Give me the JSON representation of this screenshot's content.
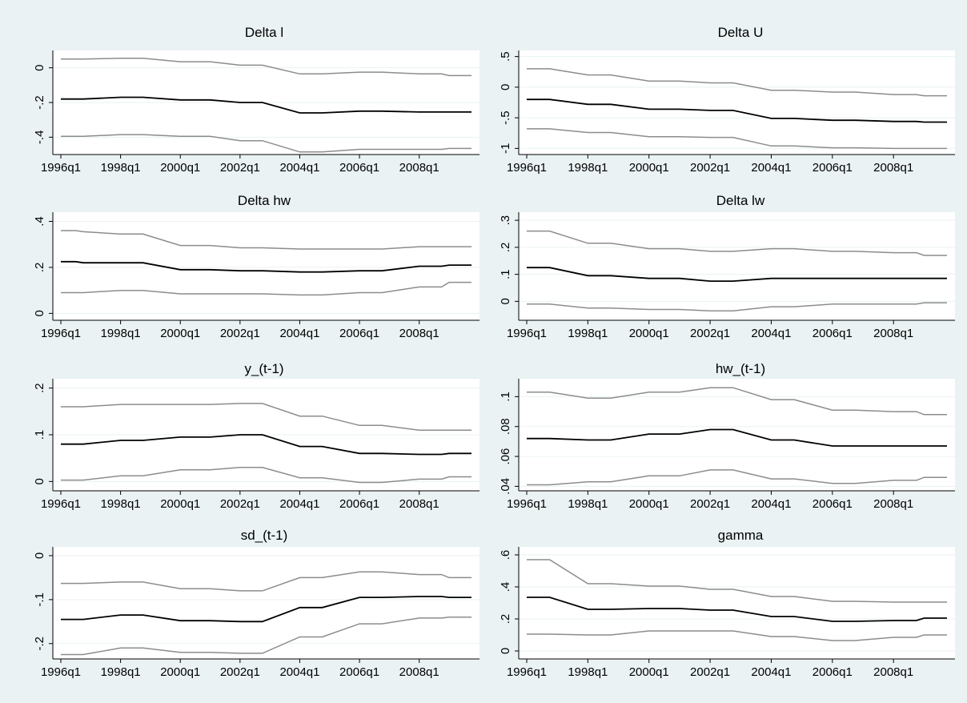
{
  "colors": {
    "background": "#eaf2f3",
    "plot": "#ffffff",
    "estimate": "#000000",
    "bounds": "#8c8c8c"
  },
  "x_dates": [
    "1996q1",
    "1996q3",
    "1996q4",
    "1998q1",
    "1998q4",
    "2000q1",
    "2000q4",
    "2001q1",
    "2002q1",
    "2002q4",
    "2004q1",
    "2004q4",
    "2006q1",
    "2006q4",
    "2008q1",
    "2008q4",
    "2009q1",
    "2009q4"
  ],
  "chart_data": [
    {
      "type": "line",
      "title": "Delta l",
      "xticks": [
        "1996q1",
        "1998q1",
        "2000q1",
        "2002q1",
        "2004q1",
        "2006q1",
        "2008q1"
      ],
      "xlim": [
        "1996q1",
        "2009q4"
      ],
      "yticks": [
        0,
        -0.2,
        -0.4
      ],
      "ytick_labels": [
        "0",
        "-.2",
        "-.4"
      ],
      "ylim": [
        -0.5,
        0.1
      ],
      "series": [
        {
          "role": "upper",
          "values": [
            0.05,
            0.05,
            0.05,
            0.055,
            0.055,
            0.035,
            0.035,
            0.035,
            0.015,
            0.015,
            -0.035,
            -0.035,
            -0.025,
            -0.025,
            -0.035,
            -0.035,
            -0.045,
            -0.045
          ]
        },
        {
          "role": "estimate",
          "values": [
            -0.18,
            -0.18,
            -0.18,
            -0.17,
            -0.17,
            -0.185,
            -0.185,
            -0.185,
            -0.2,
            -0.2,
            -0.26,
            -0.26,
            -0.25,
            -0.25,
            -0.255,
            -0.255,
            -0.255,
            -0.255
          ]
        },
        {
          "role": "lower",
          "values": [
            -0.395,
            -0.395,
            -0.395,
            -0.385,
            -0.385,
            -0.395,
            -0.395,
            -0.395,
            -0.42,
            -0.42,
            -0.485,
            -0.485,
            -0.47,
            -0.47,
            -0.47,
            -0.47,
            -0.465,
            -0.465
          ]
        }
      ]
    },
    {
      "type": "line",
      "title": "Delta U",
      "xticks": [
        "1996q1",
        "1998q1",
        "2000q1",
        "2002q1",
        "2004q1",
        "2006q1",
        "2008q1"
      ],
      "xlim": [
        "1996q1",
        "2009q4"
      ],
      "yticks": [
        0.5,
        0,
        -0.5,
        -1
      ],
      "ytick_labels": [
        ".5",
        "0",
        "-.5",
        "-1"
      ],
      "ylim": [
        -1.1,
        0.6
      ],
      "series": [
        {
          "role": "upper",
          "values": [
            0.3,
            0.3,
            0.3,
            0.2,
            0.2,
            0.1,
            0.1,
            0.1,
            0.07,
            0.07,
            -0.05,
            -0.05,
            -0.08,
            -0.08,
            -0.12,
            -0.12,
            -0.14,
            -0.14
          ]
        },
        {
          "role": "estimate",
          "values": [
            -0.2,
            -0.2,
            -0.2,
            -0.28,
            -0.28,
            -0.36,
            -0.36,
            -0.36,
            -0.38,
            -0.38,
            -0.51,
            -0.51,
            -0.54,
            -0.54,
            -0.56,
            -0.56,
            -0.57,
            -0.57
          ]
        },
        {
          "role": "lower",
          "values": [
            -0.68,
            -0.68,
            -0.68,
            -0.74,
            -0.74,
            -0.81,
            -0.81,
            -0.81,
            -0.82,
            -0.82,
            -0.96,
            -0.96,
            -0.99,
            -0.99,
            -1.0,
            -1.0,
            -1.0,
            -1.0
          ]
        }
      ]
    },
    {
      "type": "line",
      "title": "Delta hw",
      "xticks": [
        "1996q1",
        "1998q1",
        "2000q1",
        "2002q1",
        "2004q1",
        "2006q1",
        "2008q1"
      ],
      "xlim": [
        "1996q1",
        "2009q4"
      ],
      "yticks": [
        0.4,
        0.2,
        0
      ],
      "ytick_labels": [
        ".4",
        ".2",
        "0"
      ],
      "ylim": [
        -0.03,
        0.44
      ],
      "series": [
        {
          "role": "upper",
          "values": [
            0.36,
            0.36,
            0.355,
            0.345,
            0.345,
            0.295,
            0.295,
            0.295,
            0.285,
            0.285,
            0.28,
            0.28,
            0.28,
            0.28,
            0.29,
            0.29,
            0.29,
            0.29
          ]
        },
        {
          "role": "estimate",
          "values": [
            0.225,
            0.225,
            0.22,
            0.22,
            0.22,
            0.19,
            0.19,
            0.19,
            0.185,
            0.185,
            0.18,
            0.18,
            0.185,
            0.185,
            0.205,
            0.205,
            0.21,
            0.21
          ]
        },
        {
          "role": "lower",
          "values": [
            0.09,
            0.09,
            0.09,
            0.1,
            0.1,
            0.085,
            0.085,
            0.085,
            0.085,
            0.085,
            0.08,
            0.08,
            0.09,
            0.09,
            0.115,
            0.115,
            0.135,
            0.135
          ]
        }
      ]
    },
    {
      "type": "line",
      "title": "Delta lw",
      "xticks": [
        "1996q1",
        "1998q1",
        "2000q1",
        "2002q1",
        "2004q1",
        "2006q1",
        "2008q1"
      ],
      "xlim": [
        "1996q1",
        "2009q4"
      ],
      "yticks": [
        0.3,
        0.2,
        0.1,
        0
      ],
      "ytick_labels": [
        ".3",
        ".2",
        ".1",
        "0"
      ],
      "ylim": [
        -0.07,
        0.33
      ],
      "series": [
        {
          "role": "upper",
          "values": [
            0.26,
            0.26,
            0.26,
            0.215,
            0.215,
            0.195,
            0.195,
            0.195,
            0.185,
            0.185,
            0.195,
            0.195,
            0.185,
            0.185,
            0.18,
            0.18,
            0.17,
            0.17
          ]
        },
        {
          "role": "estimate",
          "values": [
            0.125,
            0.125,
            0.125,
            0.095,
            0.095,
            0.085,
            0.085,
            0.085,
            0.075,
            0.075,
            0.085,
            0.085,
            0.085,
            0.085,
            0.085,
            0.085,
            0.085,
            0.085
          ]
        },
        {
          "role": "lower",
          "values": [
            -0.01,
            -0.01,
            -0.01,
            -0.025,
            -0.025,
            -0.03,
            -0.03,
            -0.03,
            -0.035,
            -0.035,
            -0.02,
            -0.02,
            -0.01,
            -0.01,
            -0.01,
            -0.01,
            -0.005,
            -0.005
          ]
        }
      ]
    },
    {
      "type": "line",
      "title": "y_(t-1)",
      "xticks": [
        "1996q1",
        "1998q1",
        "2000q1",
        "2002q1",
        "2004q1",
        "2006q1",
        "2008q1"
      ],
      "xlim": [
        "1996q1",
        "2009q4"
      ],
      "yticks": [
        0.2,
        0.1,
        0
      ],
      "ytick_labels": [
        ".2",
        ".1",
        "0"
      ],
      "ylim": [
        -0.02,
        0.22
      ],
      "series": [
        {
          "role": "upper",
          "values": [
            0.16,
            0.16,
            0.16,
            0.165,
            0.165,
            0.165,
            0.165,
            0.165,
            0.167,
            0.167,
            0.14,
            0.14,
            0.12,
            0.12,
            0.11,
            0.11,
            0.11,
            0.11
          ]
        },
        {
          "role": "estimate",
          "values": [
            0.08,
            0.08,
            0.08,
            0.088,
            0.088,
            0.095,
            0.095,
            0.095,
            0.1,
            0.1,
            0.075,
            0.075,
            0.06,
            0.06,
            0.058,
            0.058,
            0.06,
            0.06
          ]
        },
        {
          "role": "lower",
          "values": [
            0.003,
            0.003,
            0.003,
            0.012,
            0.012,
            0.025,
            0.025,
            0.025,
            0.03,
            0.03,
            0.008,
            0.008,
            -0.002,
            -0.002,
            0.005,
            0.005,
            0.01,
            0.01
          ]
        }
      ]
    },
    {
      "type": "line",
      "title": "hw_(t-1)",
      "xticks": [
        "1996q1",
        "1998q1",
        "2000q1",
        "2002q1",
        "2004q1",
        "2006q1",
        "2008q1"
      ],
      "xlim": [
        "1996q1",
        "2009q4"
      ],
      "yticks": [
        0.1,
        0.08,
        0.06,
        0.04
      ],
      "ytick_labels": [
        ".1",
        ".08",
        ".06",
        ".04"
      ],
      "ylim": [
        0.037,
        0.112
      ],
      "series": [
        {
          "role": "upper",
          "values": [
            0.103,
            0.103,
            0.103,
            0.099,
            0.099,
            0.103,
            0.103,
            0.103,
            0.106,
            0.106,
            0.098,
            0.098,
            0.091,
            0.091,
            0.09,
            0.09,
            0.088,
            0.088
          ]
        },
        {
          "role": "estimate",
          "values": [
            0.072,
            0.072,
            0.072,
            0.071,
            0.071,
            0.075,
            0.075,
            0.075,
            0.078,
            0.078,
            0.071,
            0.071,
            0.067,
            0.067,
            0.067,
            0.067,
            0.067,
            0.067
          ]
        },
        {
          "role": "lower",
          "values": [
            0.041,
            0.041,
            0.041,
            0.043,
            0.043,
            0.047,
            0.047,
            0.047,
            0.051,
            0.051,
            0.045,
            0.045,
            0.042,
            0.042,
            0.044,
            0.044,
            0.046,
            0.046
          ]
        }
      ]
    },
    {
      "type": "line",
      "title": "sd_(t-1)",
      "xticks": [
        "1996q1",
        "1998q1",
        "2000q1",
        "2002q1",
        "2004q1",
        "2006q1",
        "2008q1"
      ],
      "xlim": [
        "1996q1",
        "2009q4"
      ],
      "yticks": [
        0,
        -0.1,
        -0.2
      ],
      "ytick_labels": [
        "0",
        "-.1",
        "-.2"
      ],
      "ylim": [
        -0.235,
        0.02
      ],
      "series": [
        {
          "role": "upper",
          "values": [
            -0.063,
            -0.063,
            -0.063,
            -0.06,
            -0.06,
            -0.075,
            -0.075,
            -0.075,
            -0.08,
            -0.08,
            -0.05,
            -0.05,
            -0.037,
            -0.037,
            -0.043,
            -0.043,
            -0.05,
            -0.05
          ]
        },
        {
          "role": "estimate",
          "values": [
            -0.145,
            -0.145,
            -0.145,
            -0.135,
            -0.135,
            -0.148,
            -0.148,
            -0.148,
            -0.15,
            -0.15,
            -0.118,
            -0.118,
            -0.095,
            -0.095,
            -0.093,
            -0.093,
            -0.095,
            -0.095
          ]
        },
        {
          "role": "lower",
          "values": [
            -0.225,
            -0.225,
            -0.225,
            -0.21,
            -0.21,
            -0.22,
            -0.22,
            -0.22,
            -0.222,
            -0.222,
            -0.185,
            -0.185,
            -0.155,
            -0.155,
            -0.142,
            -0.142,
            -0.14,
            -0.14
          ]
        }
      ]
    },
    {
      "type": "line",
      "title": "gamma",
      "xticks": [
        "1996q1",
        "1998q1",
        "2000q1",
        "2002q1",
        "2004q1",
        "2006q1",
        "2008q1"
      ],
      "xlim": [
        "1996q1",
        "2009q4"
      ],
      "yticks": [
        0.6,
        0.4,
        0.2,
        0
      ],
      "ytick_labels": [
        ".6",
        ".4",
        ".2",
        "0"
      ],
      "ylim": [
        -0.05,
        0.65
      ],
      "series": [
        {
          "role": "upper",
          "values": [
            0.57,
            0.57,
            0.57,
            0.42,
            0.42,
            0.405,
            0.405,
            0.405,
            0.385,
            0.385,
            0.34,
            0.34,
            0.31,
            0.31,
            0.305,
            0.305,
            0.305,
            0.305
          ]
        },
        {
          "role": "estimate",
          "values": [
            0.335,
            0.335,
            0.335,
            0.26,
            0.26,
            0.265,
            0.265,
            0.265,
            0.255,
            0.255,
            0.215,
            0.215,
            0.185,
            0.185,
            0.19,
            0.19,
            0.205,
            0.205
          ]
        },
        {
          "role": "lower",
          "values": [
            0.105,
            0.105,
            0.105,
            0.1,
            0.1,
            0.125,
            0.125,
            0.125,
            0.125,
            0.125,
            0.09,
            0.09,
            0.065,
            0.065,
            0.085,
            0.085,
            0.1,
            0.1
          ]
        }
      ]
    }
  ]
}
